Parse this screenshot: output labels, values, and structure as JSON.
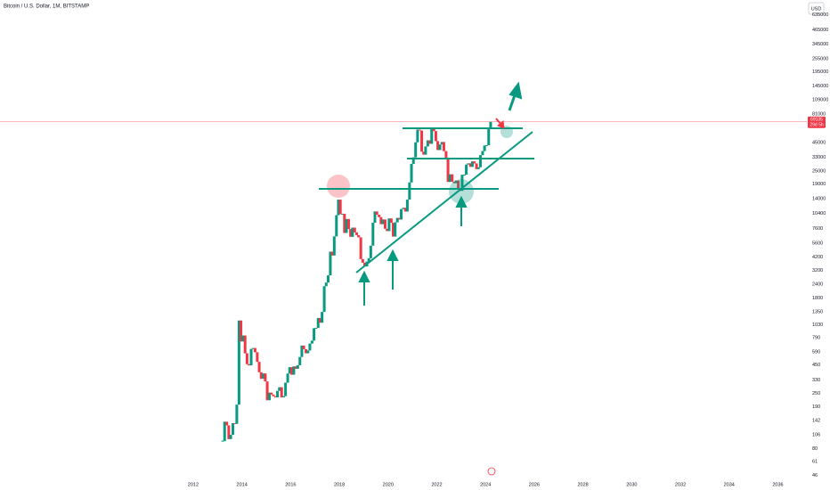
{
  "chart_data": {
    "type": "candlestick",
    "title": "Bitcoin / U.S. Dollar, 1M, BITSTAMP",
    "currency": "USD",
    "last_price": 69135,
    "countdown": "29d 5h",
    "log_scale": true,
    "up_color": "#089981",
    "down_color": "#f23645",
    "x": [
      2013.21,
      2013.29,
      2013.38,
      2013.46,
      2013.54,
      2013.63,
      2013.71,
      2013.79,
      2013.88,
      2013.96,
      2014.04,
      2014.13,
      2014.21,
      2014.29,
      2014.38,
      2014.46,
      2014.54,
      2014.63,
      2014.71,
      2014.79,
      2014.88,
      2014.96,
      2015.04,
      2015.13,
      2015.21,
      2015.29,
      2015.38,
      2015.46,
      2015.54,
      2015.63,
      2015.71,
      2015.79,
      2015.88,
      2015.96,
      2016.04,
      2016.13,
      2016.21,
      2016.29,
      2016.38,
      2016.46,
      2016.54,
      2016.63,
      2016.71,
      2016.79,
      2016.88,
      2016.96,
      2017.04,
      2017.13,
      2017.21,
      2017.29,
      2017.38,
      2017.46,
      2017.54,
      2017.63,
      2017.71,
      2017.79,
      2017.88,
      2017.96,
      2018.04,
      2018.13,
      2018.21,
      2018.29,
      2018.38,
      2018.46,
      2018.54,
      2018.63,
      2018.71,
      2018.79,
      2018.88,
      2018.96,
      2019.04,
      2019.13,
      2019.21,
      2019.29,
      2019.38,
      2019.46,
      2019.54,
      2019.63,
      2019.71,
      2019.79,
      2019.88,
      2019.96,
      2020.04,
      2020.13,
      2020.21,
      2020.29,
      2020.38,
      2020.46,
      2020.54,
      2020.63,
      2020.71,
      2020.79,
      2020.88,
      2020.96,
      2021.04,
      2021.13,
      2021.21,
      2021.29,
      2021.38,
      2021.46,
      2021.54,
      2021.63,
      2021.71,
      2021.79,
      2021.88,
      2021.96,
      2022.04,
      2022.13,
      2022.21,
      2022.29,
      2022.38,
      2022.46,
      2022.54,
      2022.63,
      2022.71,
      2022.79,
      2022.88,
      2022.96,
      2023.04,
      2023.13,
      2023.21,
      2023.29,
      2023.38,
      2023.46,
      2023.54,
      2023.63,
      2023.71,
      2023.79,
      2023.88,
      2023.96,
      2024.04,
      2024.13,
      2024.21
    ],
    "values": [
      93,
      139,
      129,
      97,
      106,
      135,
      133,
      198,
      1130,
      732,
      829,
      573,
      458,
      446,
      628,
      640,
      586,
      480,
      387,
      338,
      378,
      320,
      217,
      254,
      244,
      236,
      230,
      263,
      284,
      230,
      236,
      312,
      377,
      430,
      368,
      437,
      416,
      448,
      531,
      673,
      624,
      573,
      608,
      701,
      745,
      963,
      970,
      1190,
      1080,
      1350,
      2300,
      2480,
      2875,
      4700,
      4340,
      6450,
      10000,
      13800,
      10200,
      10300,
      6930,
      9240,
      7500,
      6390,
      7730,
      7000,
      6620,
      6320,
      4030,
      3740,
      3460,
      3830,
      4100,
      5320,
      8560,
      10800,
      10100,
      9600,
      8300,
      9150,
      7550,
      7200,
      9350,
      8540,
      6420,
      8620,
      9450,
      9140,
      11350,
      11650,
      10780,
      13800,
      19700,
      28900,
      33100,
      45200,
      58800,
      57700,
      37300,
      35000,
      41500,
      47100,
      43800,
      61300,
      57000,
      46300,
      38500,
      43200,
      45500,
      37700,
      31800,
      19900,
      23300,
      20000,
      19400,
      20500,
      17200,
      16550,
      23100,
      23150,
      28500,
      29250,
      27200,
      30450,
      29200,
      25950,
      26970,
      34650,
      37720,
      42280,
      42580,
      61130,
      69135
    ],
    "xlim": [
      2004.07,
      2036.97
    ],
    "xticks": [
      2012,
      2014,
      2016,
      2018,
      2020,
      2022,
      2024,
      2026,
      2028,
      2030,
      2032,
      2034,
      2036
    ],
    "ylim": [
      43,
      860000
    ],
    "yticks": [
      46,
      61,
      80,
      106,
      142,
      190,
      250,
      330,
      450,
      590,
      790,
      1030,
      1350,
      1800,
      2400,
      3200,
      4200,
      5600,
      7600,
      10400,
      14000,
      19000,
      25000,
      33000,
      45000,
      81000,
      109000,
      145000,
      195000,
      255000,
      345000,
      465000,
      635000
    ]
  }
}
